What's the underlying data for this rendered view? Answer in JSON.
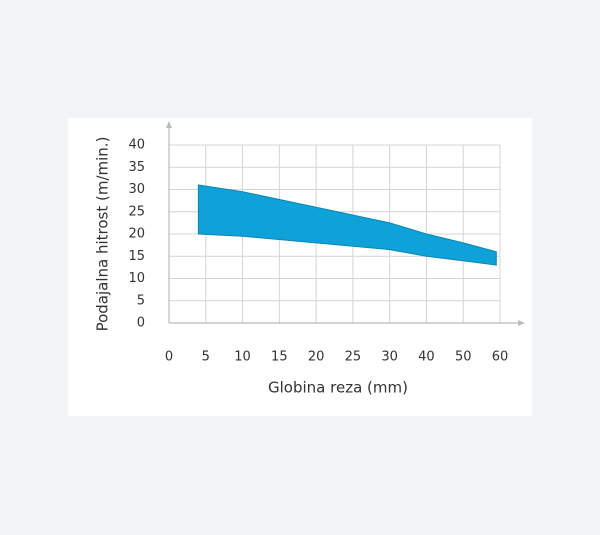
{
  "chart_data": {
    "type": "range-area",
    "x_label": "Globina reza (mm)",
    "y_label": "Podajalna hitrost (m/min.)",
    "x": [
      4,
      10,
      20,
      30,
      40,
      50,
      59
    ],
    "upper": [
      31,
      29.5,
      26,
      22.5,
      20,
      18,
      16
    ],
    "lower": [
      20,
      19.5,
      18,
      16.5,
      15,
      14,
      13
    ],
    "color": "#0ea2d9",
    "xlim": [
      0,
      60
    ],
    "xticks": [
      0,
      5,
      10,
      15,
      20,
      25,
      30,
      40,
      50,
      60
    ],
    "ylim": [
      0,
      40
    ],
    "yticks": [
      0,
      5,
      10,
      15,
      20,
      25,
      30,
      35,
      40
    ],
    "grid": true
  }
}
